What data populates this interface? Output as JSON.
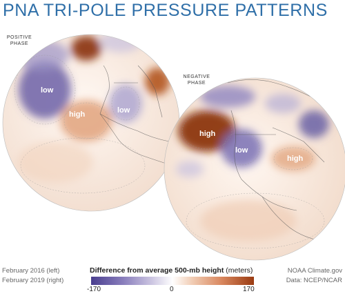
{
  "title": "PNA TRI-POLE PRESSURE PATTERNS",
  "left_globe": {
    "phase_line1": "POSITIVE",
    "phase_line2": "PHASE",
    "labels": {
      "low_pacific": "low",
      "high_west": "high",
      "low_east": "low"
    }
  },
  "right_globe": {
    "phase_line1": "NEGATIVE",
    "phase_line2": "PHASE",
    "labels": {
      "high_pacific": "high",
      "low_west": "low",
      "high_east": "high"
    }
  },
  "footer": {
    "dates_line1": "February 2016 (left)",
    "dates_line2": "February 2019 (right)",
    "credit_line1": "NOAA Climate.gov",
    "credit_line2": "Data: NCEP/NCAR"
  },
  "legend": {
    "title_bold": "Difference from average 500-mb height",
    "title_unit": "(meters)",
    "min_label": "-170",
    "mid_label": "0",
    "max_label": "170"
  },
  "colors": {
    "negative": "#4a3f8f",
    "positive": "#9a3b12",
    "title": "#2f6fa8"
  }
}
